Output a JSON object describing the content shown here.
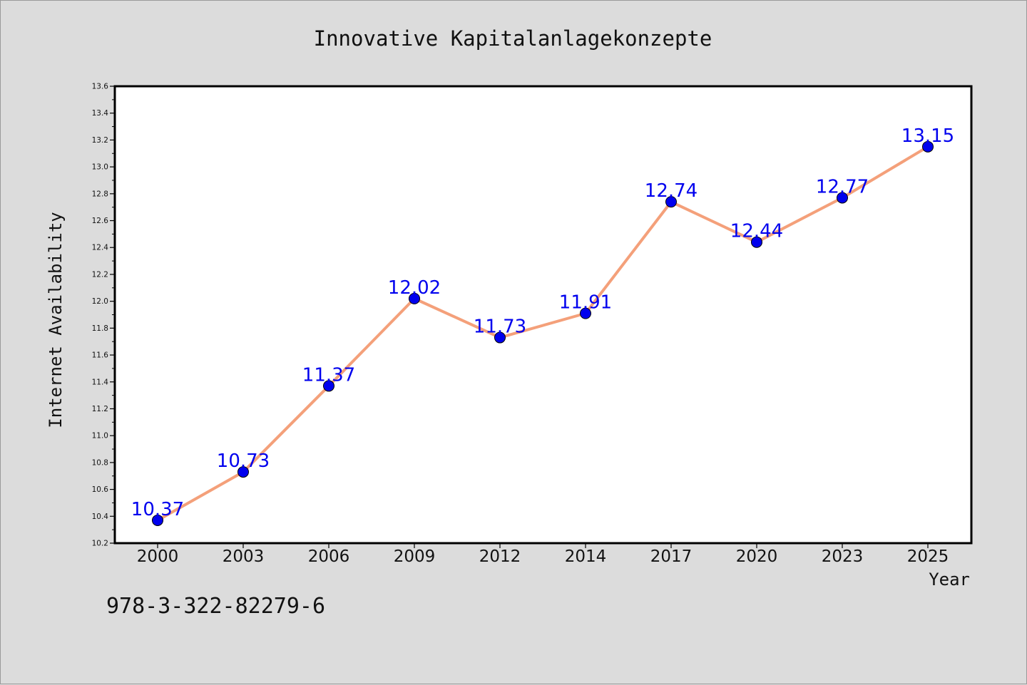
{
  "chart_data": {
    "type": "line",
    "title": "Innovative Kapitalanlagekonzepte",
    "xlabel": "Year",
    "ylabel": "Internet Availability",
    "categories": [
      "2000",
      "2003",
      "2006",
      "2009",
      "2012",
      "2014",
      "2017",
      "2020",
      "2023",
      "2025"
    ],
    "series": [
      {
        "values": [
          10.37,
          10.73,
          11.37,
          12.02,
          11.73,
          11.91,
          12.74,
          12.44,
          12.77,
          13.15
        ],
        "color": "#f4a07a",
        "marker_color": "#0000ee",
        "label_color": "#0000ee"
      }
    ],
    "ylim": [
      10.2,
      13.6
    ],
    "yticks": [
      "10.2",
      "10.4",
      "10.6",
      "10.8",
      "11.0",
      "11.2",
      "11.4",
      "11.6",
      "11.8",
      "12.0",
      "12.2",
      "12.4",
      "12.6",
      "12.8",
      "13.0",
      "13.2",
      "13.4",
      "13.6"
    ],
    "grid": false,
    "legend": "none"
  },
  "footer": {
    "isbn": "978-3-322-82279-6"
  }
}
